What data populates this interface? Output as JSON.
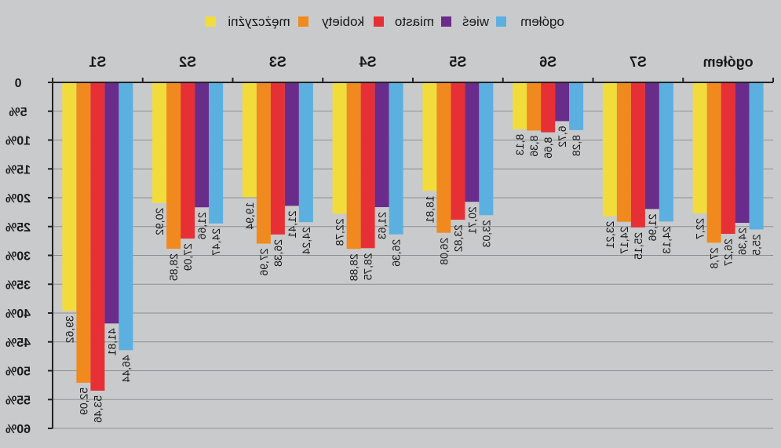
{
  "chart_data": {
    "type": "bar",
    "orientation": "mirrored",
    "categories": [
      "S1",
      "S2",
      "S3",
      "S4",
      "S5",
      "S6",
      "S7",
      "ogółem"
    ],
    "series": [
      {
        "name": "mężczyźni",
        "color": "#f2dc3c",
        "values": [
          39.62,
          20.92,
          19.94,
          22.78,
          18.81,
          8.13,
          23.21,
          22.7
        ]
      },
      {
        "name": "kobiety",
        "color": "#f08a1e",
        "values": [
          52.09,
          28.85,
          27.96,
          28.88,
          26.08,
          8.36,
          24.17,
          27.8
        ]
      },
      {
        "name": "miasto",
        "color": "#e63036",
        "values": [
          53.46,
          27.09,
          26.38,
          28.75,
          23.82,
          8.66,
          25.15,
          26.27
        ]
      },
      {
        "name": "wieś",
        "color": "#6a2c8a",
        "values": [
          41.81,
          21.66,
          21.41,
          21.63,
          20.71,
          6.72,
          21.96,
          24.36
        ]
      },
      {
        "name": "ogółem",
        "color": "#5bb0e0",
        "values": [
          46.44,
          24.47,
          24.24,
          26.36,
          23.03,
          8.28,
          24.13,
          25.5
        ]
      }
    ],
    "value_labels": [
      [
        "39,62",
        "20,92",
        "19,94",
        "22,78",
        "18,81",
        "8,13",
        "23,21",
        "22,7"
      ],
      [
        "52,09",
        "28,85",
        "27,96",
        "28,88",
        "26,08",
        "8,36",
        "24,17",
        "27,8"
      ],
      [
        "53,46",
        "27,09",
        "26,38",
        "28,75",
        "23,82",
        "8,66",
        "25,15",
        "26,27"
      ],
      [
        "41,81",
        "21,66",
        "21,41",
        "21,63",
        "20,71",
        "6,72",
        "21,96",
        "24,36"
      ],
      [
        "46,44",
        "24,47",
        "24,24",
        "26,36",
        "23,03",
        "8,28",
        "24,13",
        "25,5"
      ]
    ],
    "y_ticks": [
      0,
      5,
      10,
      15,
      20,
      25,
      30,
      35,
      40,
      45,
      50,
      55,
      60
    ],
    "y_tick_labels": [
      "0",
      "5%",
      "10%",
      "15%",
      "20%",
      "25%",
      "30%",
      "35%",
      "40%",
      "45%",
      "50%",
      "55%",
      "60%"
    ],
    "ylim": [
      0,
      60
    ],
    "grid": true,
    "legend_position": "top-center",
    "colors": {
      "background": "#c9cacc",
      "axis": "#222222",
      "grid": "#8e8f92",
      "text": "#1a1a1a"
    }
  }
}
